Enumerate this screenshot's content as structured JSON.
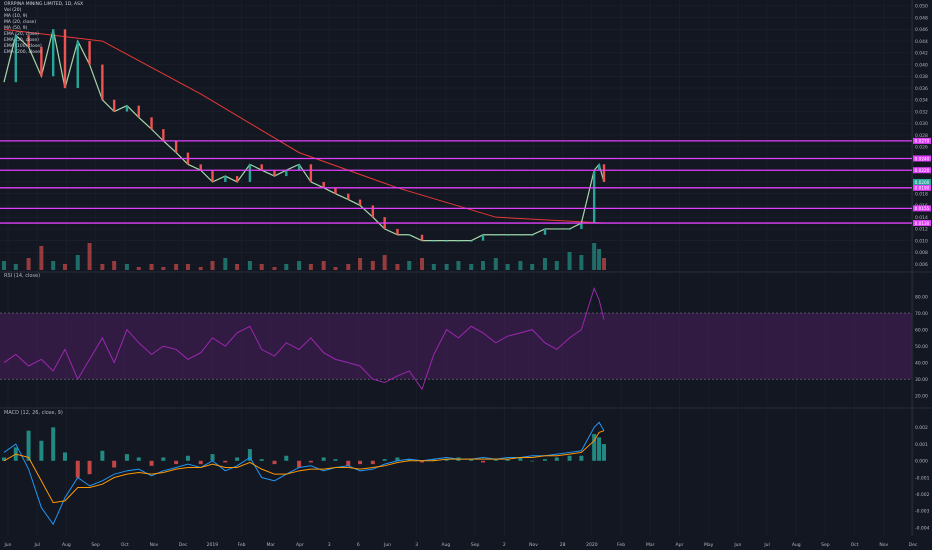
{
  "chart_data": {
    "type": "line",
    "title": "ORRPINA MINING LIMITED, 1D, ASX",
    "x_ticks": [
      "Jun",
      "Jul",
      "Aug",
      "Sep",
      "Oct",
      "Nov",
      "Dec",
      "2019",
      "Feb",
      "Mar",
      "Apr",
      "May",
      "Jun",
      "Jul",
      "Aug",
      "Sep",
      "Oct",
      "Nov",
      "Dec",
      "2020",
      "Feb",
      "Mar",
      "Apr",
      "May",
      "Jun",
      "Jul",
      "Aug",
      "Sep",
      "Oct",
      "Nov",
      "Dec"
    ],
    "x_tick_marks": [
      "Jun",
      "Jul",
      "Aug",
      "Sep",
      "Oct",
      "Nov",
      "Dec",
      "2019",
      "Feb",
      "Mar",
      "Apr",
      "3",
      "6",
      "Jun",
      "3",
      "Aug",
      "Sep",
      "2",
      "Nov",
      "28",
      "2020",
      "Feb",
      "Mar",
      "Apr",
      "May",
      "Jun",
      "Jul",
      "Aug",
      "Sep",
      "Oct",
      "Nov",
      "Dec"
    ],
    "price_ticks": [
      0.05,
      0.048,
      0.046,
      0.044,
      0.042,
      0.04,
      0.038,
      0.036,
      0.034,
      0.032,
      0.03,
      0.028,
      0.026,
      0.024,
      0.022,
      0.02,
      0.018,
      0.016,
      0.014,
      0.012,
      0.01,
      0.008,
      0.006
    ],
    "price_ylim": [
      0.005,
      0.051
    ],
    "horizontal_levels": [
      {
        "label": "0.0270",
        "value": 0.027
      },
      {
        "label": "0.0240",
        "value": 0.024
      },
      {
        "label": "0.0220",
        "value": 0.022
      },
      {
        "label": "0.0190",
        "value": 0.019
      },
      {
        "label": "0.0155",
        "value": 0.0155
      },
      {
        "label": "0.0130",
        "value": 0.013
      }
    ],
    "last_price": {
      "label": "0.0200",
      "value": 0.02
    },
    "price_close": {
      "x": [
        0,
        12,
        25,
        38,
        50,
        62,
        75,
        87,
        100,
        112,
        125,
        137,
        150,
        162,
        175,
        187,
        200,
        212,
        225,
        237,
        250,
        262,
        275,
        287,
        300,
        312,
        325,
        337,
        350,
        362,
        375,
        387,
        400,
        412,
        425,
        437,
        450,
        462,
        475,
        487,
        500,
        512,
        525,
        537,
        550,
        562,
        575,
        587,
        600,
        605,
        610
      ],
      "y": [
        0.037,
        0.045,
        0.043,
        0.038,
        0.046,
        0.036,
        0.044,
        0.04,
        0.034,
        0.032,
        0.033,
        0.031,
        0.029,
        0.027,
        0.025,
        0.023,
        0.022,
        0.02,
        0.021,
        0.02,
        0.023,
        0.022,
        0.021,
        0.022,
        0.023,
        0.02,
        0.019,
        0.018,
        0.017,
        0.016,
        0.014,
        0.012,
        0.011,
        0.011,
        0.01,
        0.01,
        0.01,
        0.01,
        0.01,
        0.011,
        0.011,
        0.011,
        0.011,
        0.011,
        0.012,
        0.012,
        0.012,
        0.013,
        0.022,
        0.023,
        0.02
      ]
    },
    "ema_slow": {
      "x": [
        0,
        100,
        200,
        300,
        400,
        500,
        610
      ],
      "y": [
        0.046,
        0.044,
        0.035,
        0.025,
        0.019,
        0.014,
        0.013
      ]
    },
    "rsi": {
      "label": "RSI (14, close)",
      "ticks": [
        80,
        70,
        60,
        50,
        40,
        30,
        20
      ],
      "ylim": [
        15,
        90
      ],
      "band": [
        30,
        70
      ],
      "values": [
        40,
        45,
        38,
        42,
        35,
        48,
        30,
        42,
        55,
        40,
        60,
        52,
        45,
        50,
        48,
        42,
        46,
        55,
        50,
        58,
        62,
        48,
        44,
        52,
        48,
        55,
        46,
        42,
        40,
        38,
        30,
        28,
        32,
        35,
        24,
        45,
        60,
        55,
        62,
        58,
        52,
        56,
        58,
        60,
        52,
        48,
        55,
        60,
        85,
        78,
        66
      ]
    },
    "macd": {
      "label": "MACD (12, 26, close, 9)",
      "ticks": [
        0.002,
        0.001,
        0.0,
        -0.001,
        -0.002,
        -0.003,
        -0.004
      ],
      "ylim": [
        -0.0045,
        0.0028
      ],
      "histogram": [
        0.0002,
        0.0008,
        0.0018,
        0.0012,
        0.002,
        0.0005,
        -0.001,
        -0.0008,
        0.0006,
        -0.0004,
        0.0004,
        0.0002,
        -0.0003,
        0.0002,
        -0.0002,
        0.0003,
        -0.0002,
        0.0004,
        -0.0001,
        0.0002,
        0.0007,
        0.0001,
        -0.0002,
        0.0003,
        -0.0004,
        -0.0001,
        0.0002,
        0.0001,
        -0.0003,
        -0.0002,
        -0.0002,
        0.0001,
        0.0002,
        0.0001,
        -0.0001,
        0.0001,
        0.0001,
        0.0002,
        0.0001,
        -0.0001,
        0.0001,
        0.0001,
        0.0002,
        0.0,
        0.0001,
        0.0002,
        0.0003,
        0.0003,
        0.0016,
        0.0014,
        0.001
      ],
      "macd_line": [
        0.0005,
        0.001,
        -0.0005,
        -0.0028,
        -0.0038,
        -0.0022,
        -0.001,
        -0.0015,
        -0.0012,
        -0.0008,
        -0.0006,
        -0.0005,
        -0.0009,
        -0.0006,
        -0.0004,
        -0.0002,
        -0.0004,
        0.0,
        -0.0006,
        -0.0003,
        0.0002,
        -0.001,
        -0.0012,
        -0.0008,
        -0.0004,
        -0.0003,
        -0.0006,
        -0.0004,
        -0.0003,
        -0.0006,
        -0.0005,
        -0.0002,
        0.0,
        0.0001,
        0.0,
        0.0001,
        0.0002,
        0.0001,
        0.0001,
        0.0002,
        0.0001,
        0.0002,
        0.0002,
        0.0003,
        0.0003,
        0.0004,
        0.0005,
        0.0006,
        0.002,
        0.0023,
        0.0018
      ],
      "signal_line": [
        0.0,
        0.0004,
        0.0002,
        -0.0012,
        -0.0025,
        -0.0024,
        -0.0016,
        -0.0016,
        -0.0014,
        -0.001,
        -0.0008,
        -0.0007,
        -0.0008,
        -0.0007,
        -0.0005,
        -0.0004,
        -0.0004,
        -0.0002,
        -0.0004,
        -0.0004,
        -0.0001,
        -0.0005,
        -0.0008,
        -0.0008,
        -0.0006,
        -0.0005,
        -0.0005,
        -0.0004,
        -0.0004,
        -0.0005,
        -0.0004,
        -0.0003,
        -0.0001,
        0.0,
        0.0,
        0.0,
        0.0001,
        0.0001,
        0.0001,
        0.0001,
        0.0001,
        0.0001,
        0.0002,
        0.0002,
        0.0003,
        0.0003,
        0.0004,
        0.0005,
        0.0012,
        0.0017,
        0.0018
      ]
    },
    "volume": [
      3,
      2,
      4,
      8,
      3,
      2,
      5,
      9,
      2,
      3,
      2,
      1,
      2,
      1,
      2,
      2,
      1,
      3,
      4,
      2,
      3,
      2,
      1,
      2,
      3,
      2,
      3,
      1,
      2,
      4,
      3,
      5,
      2,
      3,
      4,
      2,
      2,
      3,
      2,
      3,
      4,
      2,
      3,
      2,
      4,
      3,
      6,
      5,
      9,
      7,
      4
    ]
  },
  "legend": {
    "title": "ORRPINA MINING LIMITED, 1D, ASX",
    "lines": [
      "Vol (20)",
      "MA (10, 9)",
      "MA (20, close)",
      "MA (50, 9)",
      "EMA (20, close)",
      "EMA (50, close)",
      "EMA (100, close)",
      "EMA (200, close)"
    ]
  },
  "colors": {
    "background": "#131722",
    "grid": "#1e222d",
    "levels": "#e040fb",
    "up": "#26a69a",
    "down": "#ef5350",
    "price": "#a5d6a7",
    "rsi_line": "#9c27b0",
    "rsi_band": "#4a1f5e",
    "macd_line": "#2196f3",
    "signal_line": "#ff9800"
  }
}
